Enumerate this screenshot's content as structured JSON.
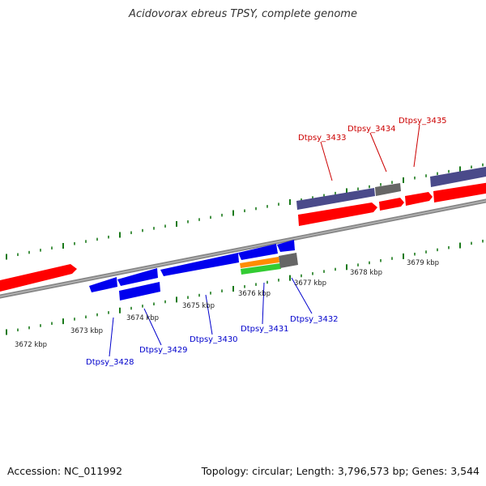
{
  "title": "Acidovorax ebreus TPSY, complete genome",
  "footer": {
    "accession": "Accession: NC_011992",
    "summary": "Topology: circular; Length: 3,796,573 bp; Genes: 3,544"
  },
  "colors": {
    "tick": "#1a7a1a",
    "backbone": "#888888",
    "red_gene": "#ff0000",
    "blue_gene": "#0000ee",
    "purple_gene": "#4a4a8a",
    "gray_gene": "#666666",
    "orange_gene": "#ff8c00",
    "green_gene": "#33cc33",
    "top_label": "#cc0000",
    "bottom_label": "#0000cc"
  },
  "kbp_labels": [
    "3672 kbp",
    "3673 kbp",
    "3674 kbp",
    "3675 kbp",
    "3676 kbp",
    "3677 kbp",
    "3678 kbp",
    "3679 kbp"
  ],
  "top_gene_labels": [
    "Dtpsy_3433",
    "Dtpsy_3434",
    "Dtpsy_3435"
  ],
  "bottom_gene_labels": [
    "Dtpsy_3428",
    "Dtpsy_3429",
    "Dtpsy_3430",
    "Dtpsy_3431",
    "Dtpsy_3432"
  ]
}
